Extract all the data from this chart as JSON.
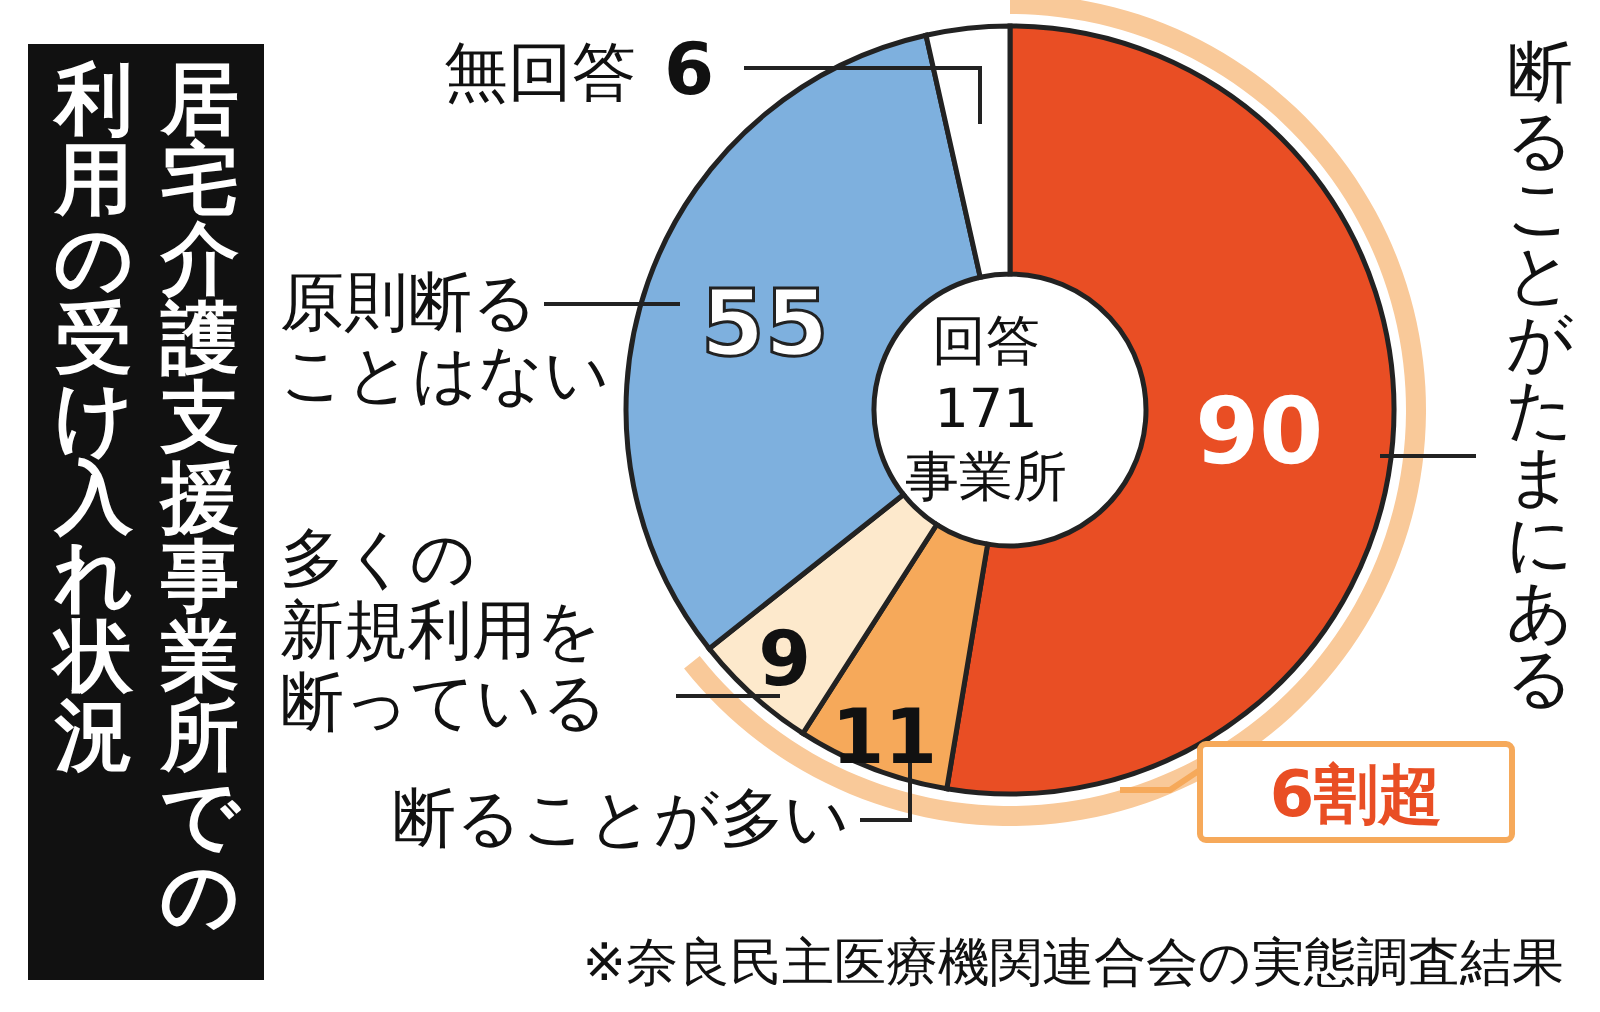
{
  "chart_data": {
    "type": "donut",
    "title": "居宅介護支援事業所での",
    "subtitle": "利用の受け入れ状況",
    "categories": [
      "断ることがたまにある",
      "断ることが多い",
      "多くの新規利用を断っている",
      "原則断ることはない",
      "無回答"
    ],
    "values": [
      90,
      11,
      9,
      55,
      6
    ],
    "colors": [
      "#e94e24",
      "#f6a95a",
      "#fde9cc",
      "#7eb0de",
      "#ffffff"
    ],
    "data_labels": true,
    "annotations": [
      "回答\n171\n事業所",
      "6割超",
      "※奈良民主医療機関連合会の実態調査結果"
    ]
  }
}
